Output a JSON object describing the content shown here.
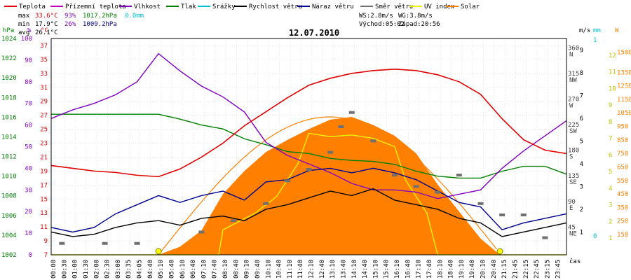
{
  "chart_data": {
    "type": "line",
    "title": "12.07.2010",
    "legend": [
      {
        "name": "Teplota",
        "color": "#e00000"
      },
      {
        "name": "Přízemní teplota",
        "color": "#c000c0"
      },
      {
        "name": "Vlhkost",
        "color": "#8000c0"
      },
      {
        "name": "Tlak",
        "color": "#008000"
      },
      {
        "name": "Srážky",
        "color": "#00c0d0"
      },
      {
        "name": "Rychlost větru",
        "color": "#000000"
      },
      {
        "name": "Náraz větru",
        "color": "#000090"
      },
      {
        "name": "Směr větru",
        "color": "#707070"
      },
      {
        "name": "UV index",
        "color": "#f0f000"
      },
      {
        "name": "Solar",
        "color": "#ff8000"
      }
    ],
    "stats": {
      "max_label": "max",
      "max_temp": "33.6°C",
      "max_hum": "93%",
      "max_press": "1017.2hPa",
      "rain": "0.0mm",
      "min_label": "min",
      "min_temp": "17.9°C",
      "min_hum": "26%",
      "min_press": "1009.2hPa",
      "avg_label": "avg",
      "avg_temp": "26.1°C"
    },
    "wind_info": {
      "ws": "WS:2.8m/s",
      "wg": "WG:3.8m/s",
      "sunrise": "Východ:05:02",
      "sunset": "Západ:20:56"
    },
    "axis_units": {
      "press": "hPa",
      "hum": "%",
      "temp": "°C",
      "ms": "m/s",
      "mm": "mm",
      "uv": "W",
      "x": "čas"
    },
    "y_hpa": {
      "ticks": [
        "1024",
        "1022",
        "1020",
        "1018",
        "1016",
        "1014",
        "1012",
        "1010",
        "1008",
        "1006",
        "1004",
        "1002"
      ],
      "range": [
        1002,
        1024
      ]
    },
    "y_hum": {
      "ticks": [
        "100",
        "90",
        "80",
        "70",
        "60",
        "50",
        "40",
        "30",
        "20",
        "10",
        "0"
      ],
      "range": [
        0,
        100
      ]
    },
    "y_temp": {
      "ticks": [
        "37",
        "35",
        "33",
        "31",
        "29",
        "27",
        "25",
        "23",
        "21",
        "19",
        "17",
        "15",
        "13",
        "11",
        "9",
        "7"
      ],
      "range": [
        7,
        38
      ]
    },
    "y_dir": {
      "ticks": [
        "360",
        "315",
        "270",
        "225",
        "180",
        "135",
        "90",
        "45"
      ],
      "labels": [
        "N",
        "NW",
        "W",
        "SW",
        "S",
        "SE",
        "E",
        "NE"
      ],
      "range": [
        0,
        380
      ]
    },
    "y_ms": {
      "ticks": [
        "9",
        "8",
        "7",
        "6",
        "5",
        "4",
        "3",
        "2",
        "1"
      ],
      "range": [
        0,
        9.5
      ]
    },
    "y_mm": {
      "ticks": [
        "1",
        "0"
      ]
    },
    "y_uv": {
      "ticks": [
        "12",
        "11",
        "10",
        "9",
        "8",
        "7",
        "6",
        "5",
        "4",
        "3",
        "2",
        "1"
      ],
      "range": [
        0,
        13
      ]
    },
    "y_solar": {
      "ticks": [
        "1500",
        "1350",
        "1250",
        "1150",
        "1050",
        "950",
        "850",
        "750",
        "650",
        "550",
        "450",
        "350",
        "250",
        "150"
      ],
      "range": [
        0,
        1600
      ]
    },
    "x_ticks": [
      "00:00",
      "00:30",
      "01:00",
      "01:30",
      "02:00",
      "02:30",
      "03:00",
      "03:35",
      "04:05",
      "04:40",
      "05:10",
      "05:40",
      "06:10",
      "06:40",
      "07:10",
      "07:40",
      "08:10",
      "08:40",
      "09:10",
      "09:40",
      "10:10",
      "10:40",
      "11:10",
      "11:40",
      "12:10",
      "12:40",
      "13:10",
      "13:40",
      "14:10",
      "14:40",
      "15:10",
      "15:40",
      "16:10",
      "16:40",
      "17:10",
      "17:40",
      "18:10",
      "18:40",
      "19:10",
      "19:40",
      "20:10",
      "20:40",
      "21:15",
      "21:45",
      "22:15",
      "22:45",
      "23:15",
      "23:45"
    ],
    "series": [
      {
        "name": "Teplota",
        "axis": "temp",
        "color": "#e00000",
        "x": [
          0,
          1,
          2,
          3,
          4,
          5,
          6,
          7,
          8,
          9,
          10,
          11,
          12,
          13,
          14,
          15,
          16,
          17,
          18,
          19,
          20,
          21,
          22,
          23,
          24
        ],
        "values": [
          19.8,
          19.4,
          19.0,
          18.8,
          18.4,
          18.2,
          19.3,
          21.0,
          23.0,
          25.5,
          27.5,
          29.5,
          31.3,
          32.3,
          33.0,
          33.4,
          33.6,
          33.4,
          32.8,
          31.8,
          30.0,
          26.5,
          23.5,
          22.0,
          21.5
        ]
      },
      {
        "name": "Vlhkost",
        "axis": "hum",
        "color": "#8000c0",
        "x": [
          0,
          1,
          2,
          3,
          4,
          5,
          6,
          7,
          8,
          9,
          10,
          11,
          12,
          13,
          14,
          15,
          16,
          17,
          18,
          19,
          20,
          21,
          22,
          23,
          24
        ],
        "values": [
          63,
          67,
          70,
          74,
          80,
          93,
          85,
          78,
          73,
          66,
          52,
          46,
          42,
          38,
          33,
          30,
          30,
          29,
          26,
          28,
          30,
          40,
          48,
          55,
          62
        ]
      },
      {
        "name": "Tlak",
        "axis": "press",
        "color": "#008000",
        "x": [
          0,
          1,
          2,
          3,
          4,
          5,
          6,
          7,
          8,
          9,
          10,
          11,
          12,
          13,
          14,
          15,
          16,
          17,
          18,
          19,
          20,
          21,
          22,
          23,
          24
        ],
        "values": [
          1016.3,
          1016.3,
          1016.3,
          1016.3,
          1016.3,
          1016.3,
          1015.8,
          1015.2,
          1014.8,
          1013.8,
          1013.2,
          1012.5,
          1012.3,
          1011.8,
          1011.6,
          1011.5,
          1011.2,
          1010.5,
          1010.0,
          1009.8,
          1009.8,
          1010.5,
          1011.0,
          1011.0,
          1010.2
        ]
      },
      {
        "name": "Rychlost větru",
        "axis": "ms",
        "color": "#000000",
        "x": [
          0,
          1,
          2,
          3,
          4,
          5,
          6,
          7,
          8,
          9,
          10,
          11,
          12,
          13,
          14,
          15,
          16,
          17,
          18,
          19,
          20,
          21,
          22,
          23,
          24
        ],
        "values": [
          1.0,
          0.8,
          0.9,
          1.2,
          1.4,
          1.5,
          1.3,
          1.6,
          1.7,
          1.5,
          2.0,
          2.2,
          2.5,
          2.8,
          2.6,
          2.9,
          2.4,
          2.2,
          2.0,
          1.6,
          1.4,
          0.8,
          1.0,
          1.2,
          1.4
        ]
      },
      {
        "name": "Náraz větru",
        "axis": "ms",
        "color": "#000090",
        "x": [
          0,
          1,
          2,
          3,
          4,
          5,
          6,
          7,
          8,
          9,
          10,
          11,
          12,
          13,
          14,
          15,
          16,
          17,
          18,
          19,
          20,
          21,
          22,
          23,
          24
        ],
        "values": [
          1.2,
          1.0,
          1.2,
          1.8,
          2.2,
          2.6,
          2.3,
          2.6,
          2.8,
          2.4,
          3.2,
          3.3,
          3.7,
          3.8,
          3.6,
          3.8,
          3.6,
          3.3,
          2.8,
          2.3,
          2.1,
          1.1,
          1.4,
          1.6,
          1.8
        ]
      },
      {
        "name": "Solar",
        "axis": "solar",
        "color": "#ff8000",
        "x": [
          5.0,
          6,
          7,
          8,
          9,
          10,
          11,
          12,
          13,
          14,
          15,
          16,
          17,
          18,
          19,
          20,
          20.9
        ],
        "values": [
          0,
          60,
          180,
          450,
          620,
          760,
          850,
          930,
          1000,
          1020,
          960,
          880,
          750,
          520,
          320,
          120,
          0
        ]
      },
      {
        "name": "UV index",
        "axis": "uv",
        "color": "#f0f000",
        "x": [
          0,
          7.8,
          8.0,
          9.5,
          10.5,
          11.0,
          11.5,
          12,
          13,
          14,
          15,
          16,
          16.5,
          17.5,
          18,
          24
        ],
        "values": [
          0,
          0,
          1.5,
          2.5,
          3.5,
          4.5,
          5.5,
          7.3,
          7.1,
          7.2,
          7.0,
          6.5,
          4.5,
          2.5,
          0,
          0
        ]
      },
      {
        "name": "Směr větru",
        "axis": "dir",
        "color": "#707070",
        "x": [
          0.5,
          2.5,
          4,
          7,
          8.5,
          10,
          11,
          12,
          13,
          13.5,
          14,
          15,
          16,
          17,
          18,
          19,
          20,
          21,
          22,
          23
        ],
        "values": [
          20,
          20,
          20,
          40,
          60,
          90,
          130,
          150,
          180,
          225,
          250,
          200,
          140,
          120,
          110,
          140,
          90,
          70,
          70,
          30
        ]
      }
    ]
  }
}
